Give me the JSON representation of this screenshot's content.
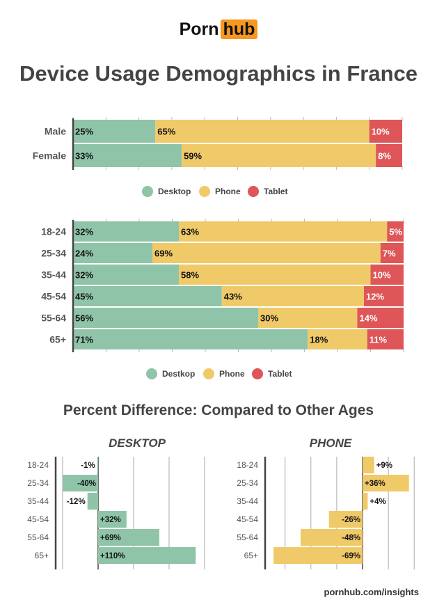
{
  "logo": {
    "part1": "Porn",
    "part2": "hub"
  },
  "title": "Device Usage Demographics in France",
  "subtitle": "Percent Difference: Compared to Other Ages",
  "footer": "pornhub.com/insights",
  "colors": {
    "desktop": "#8fc4a9",
    "phone": "#f0ca69",
    "tablet": "#de5658"
  },
  "chart_data": [
    {
      "type": "bar",
      "stacked": true,
      "orientation": "horizontal",
      "categories": [
        "Male",
        "Female"
      ],
      "series": [
        {
          "name": "Desktop",
          "values": [
            25,
            33
          ]
        },
        {
          "name": "Phone",
          "values": [
            65,
            59
          ]
        },
        {
          "name": "Tablet",
          "values": [
            10,
            8
          ]
        }
      ],
      "xlim": [
        0,
        100
      ],
      "legend": [
        "Desktop",
        "Phone",
        "Tablet"
      ],
      "legend_position": "bottom"
    },
    {
      "type": "bar",
      "stacked": true,
      "orientation": "horizontal",
      "categories": [
        "18-24",
        "25-34",
        "35-44",
        "45-54",
        "55-64",
        "65+"
      ],
      "series": [
        {
          "name": "Destkop",
          "values": [
            32,
            24,
            32,
            45,
            56,
            71
          ]
        },
        {
          "name": "Phone",
          "values": [
            63,
            69,
            58,
            43,
            30,
            18
          ]
        },
        {
          "name": "Tablet",
          "values": [
            5,
            7,
            10,
            12,
            14,
            11
          ]
        }
      ],
      "xlim": [
        0,
        100
      ],
      "legend": [
        "Destkop",
        "Phone",
        "Tablet"
      ],
      "legend_position": "bottom"
    },
    {
      "type": "bar",
      "orientation": "horizontal",
      "title": "DESKTOP",
      "categories": [
        "18-24",
        "25-34",
        "35-44",
        "45-54",
        "55-64",
        "65+"
      ],
      "values": [
        -1,
        -40,
        -12,
        32,
        69,
        110
      ],
      "labels": [
        "-1%",
        "-40%",
        "-12%",
        "+32%",
        "+69%",
        "+110%"
      ],
      "xlim": [
        -48,
        120
      ],
      "grid": [
        -40,
        0,
        40,
        80,
        120
      ]
    },
    {
      "type": "bar",
      "orientation": "horizontal",
      "title": "PHONE",
      "categories": [
        "18-24",
        "25-34",
        "35-44",
        "45-54",
        "55-64",
        "65+"
      ],
      "values": [
        9,
        36,
        4,
        -26,
        -48,
        -69
      ],
      "labels": [
        "+9%",
        "+36%",
        "+4%",
        "-26%",
        "-48%",
        "-69%"
      ],
      "xlim": [
        -75,
        42
      ],
      "grid": [
        -60,
        -40,
        -20,
        0,
        20,
        40
      ]
    }
  ]
}
